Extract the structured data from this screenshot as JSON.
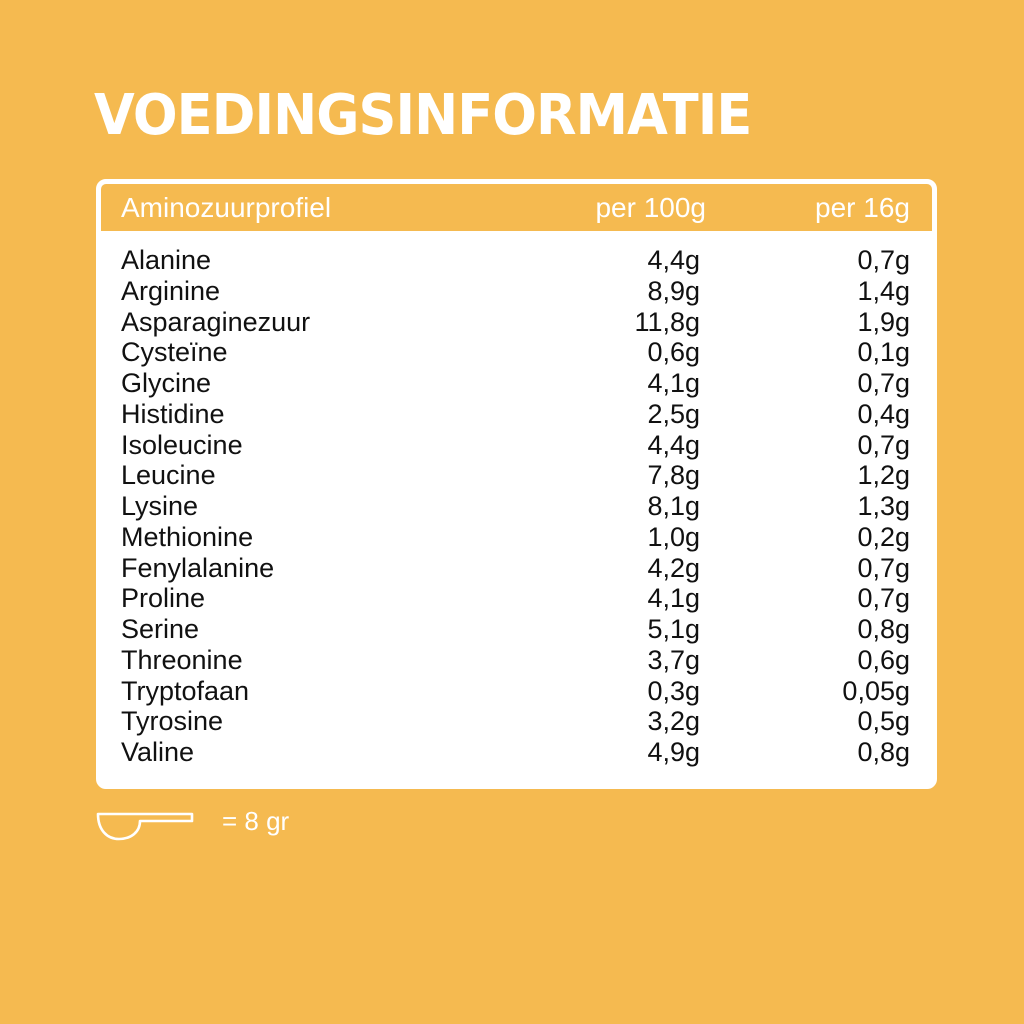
{
  "title": "VOEDINGSINFORMATIE",
  "colors": {
    "background": "#F5BA50",
    "panel": "#FFFFFF",
    "text": "#111111"
  },
  "table": {
    "headers": {
      "name": "Aminozuurprofiel",
      "per100": "per 100g",
      "per16": "per 16g"
    },
    "rows": [
      {
        "name": "Alanine",
        "per100": "4,4g",
        "per16": "0,7g"
      },
      {
        "name": "Arginine",
        "per100": "8,9g",
        "per16": "1,4g"
      },
      {
        "name": "Asparaginezuur",
        "per100": "11,8g",
        "per16": "1,9g"
      },
      {
        "name": "Cysteïne",
        "per100": "0,6g",
        "per16": "0,1g"
      },
      {
        "name": "Glycine",
        "per100": "4,1g",
        "per16": "0,7g"
      },
      {
        "name": "Histidine",
        "per100": "2,5g",
        "per16": "0,4g"
      },
      {
        "name": "Isoleucine",
        "per100": "4,4g",
        "per16": "0,7g"
      },
      {
        "name": "Leucine",
        "per100": "7,8g",
        "per16": "1,2g"
      },
      {
        "name": "Lysine",
        "per100": "8,1g",
        "per16": "1,3g"
      },
      {
        "name": "Methionine",
        "per100": "1,0g",
        "per16": "0,2g"
      },
      {
        "name": "Fenylalanine",
        "per100": "4,2g",
        "per16": "0,7g"
      },
      {
        "name": "Proline",
        "per100": "4,1g",
        "per16": "0,7g"
      },
      {
        "name": "Serine",
        "per100": "5,1g",
        "per16": "0,8g"
      },
      {
        "name": "Threonine",
        "per100": "3,7g",
        "per16": "0,6g"
      },
      {
        "name": "Tryptofaan",
        "per100": "0,3g",
        "per16": "0,05g"
      },
      {
        "name": "Tyrosine",
        "per100": "3,2g",
        "per16": "0,5g"
      },
      {
        "name": "Valine",
        "per100": "4,9g",
        "per16": "0,8g"
      }
    ]
  },
  "footer": {
    "icon": "scoop-icon",
    "text": "= 8 gr"
  }
}
